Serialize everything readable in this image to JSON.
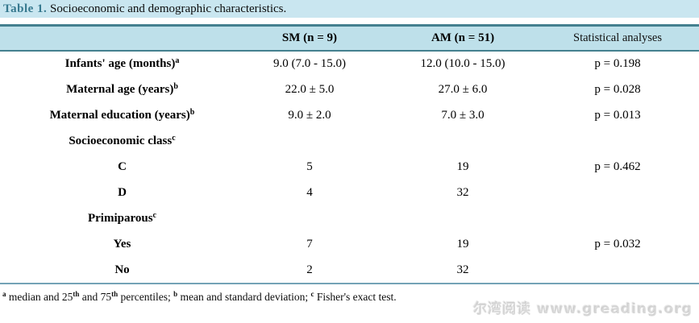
{
  "title": {
    "label": "Table 1.",
    "text": " Socioeconomic and demographic characteristics."
  },
  "colors": {
    "band_bg": "#c9e6f0",
    "header_bg": "#bee0ea",
    "border_dark": "#44808f",
    "border_light": "#74a3b6",
    "title_accent": "#37798f"
  },
  "header": {
    "col_label": "",
    "col_sm": "SM (n = 9)",
    "col_am": "AM (n = 51)",
    "col_stat": "Statistical analyses"
  },
  "rows": [
    {
      "label": "Infants' age (months)",
      "sup": "a",
      "sm": "9.0 (7.0 - 15.0)",
      "am": "12.0 (10.0 - 15.0)",
      "p": "p = 0.198"
    },
    {
      "label": "Maternal age (years)",
      "sup": "b",
      "sm": "22.0 ± 5.0",
      "am": "27.0 ± 6.0",
      "p": "p = 0.028"
    },
    {
      "label": "Maternal education (years)",
      "sup": "b",
      "sm": "9.0 ± 2.0",
      "am": "7.0 ± 3.0",
      "p": "p = 0.013"
    },
    {
      "label": "Socioeconomic class",
      "sup": "c",
      "sm": "",
      "am": "",
      "p": ""
    },
    {
      "label": "C",
      "sup": "",
      "sm": "5",
      "am": "19",
      "p": "p = 0.462"
    },
    {
      "label": "D",
      "sup": "",
      "sm": "4",
      "am": "32",
      "p": ""
    },
    {
      "label": "Primiparous",
      "sup": "c",
      "sm": "",
      "am": "",
      "p": ""
    },
    {
      "label": "Yes",
      "sup": "",
      "sm": "7",
      "am": "19",
      "p": "p = 0.032"
    },
    {
      "label": "No",
      "sup": "",
      "sm": "2",
      "am": "32",
      "p": ""
    }
  ],
  "footnote": {
    "sup_a": "a",
    "seg_1": " median and 25",
    "sup_th1": "th",
    "seg_2": " and 75",
    "sup_th2": "th",
    "seg_3": " percentiles; ",
    "sup_b": "b",
    "seg_4": " mean and standard deviation; ",
    "sup_c": "c",
    "seg_5": " Fisher's exact test."
  },
  "watermark": "尔湾阅读 www.greading.org"
}
